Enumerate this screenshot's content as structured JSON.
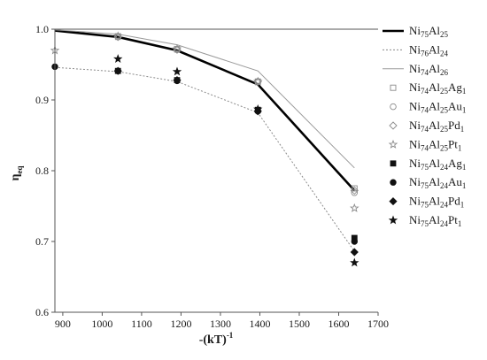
{
  "chart_data": {
    "type": "line",
    "xlabel": "-(kT)",
    "xlabel_sup": "-1",
    "ylabel": "η",
    "ylabel_sub": "eq",
    "xlim": [
      880,
      1700
    ],
    "ylim": [
      0.6,
      1.0
    ],
    "xticks": [
      900,
      1000,
      1100,
      1200,
      1300,
      1400,
      1500,
      1600,
      1700
    ],
    "yticks": [
      0.6,
      0.7,
      0.8,
      0.9,
      1.0
    ],
    "grid": false,
    "legend_position": "right",
    "series": [
      {
        "name": "Ni75Al25",
        "label_parts": [
          [
            "Ni",
            ""
          ],
          [
            "75",
            "sub"
          ],
          [
            "Al",
            ""
          ],
          [
            "25",
            "sub"
          ]
        ],
        "style": "line-thick",
        "color": "#000000",
        "x": [
          880,
          1040,
          1190,
          1395,
          1640
        ],
        "y": [
          0.998,
          0.989,
          0.97,
          0.922,
          0.772
        ]
      },
      {
        "name": "Ni76Al24",
        "label_parts": [
          [
            "Ni",
            ""
          ],
          [
            "76",
            "sub"
          ],
          [
            "Al",
            ""
          ],
          [
            "24",
            "sub"
          ]
        ],
        "style": "line-dotted",
        "color": "#8a8a8a",
        "x": [
          880,
          1040,
          1190,
          1395,
          1640
        ],
        "y": [
          0.946,
          0.94,
          0.926,
          0.882,
          0.686
        ]
      },
      {
        "name": "Ni74Al26",
        "label_parts": [
          [
            "Ni",
            ""
          ],
          [
            "74",
            "sub"
          ],
          [
            "Al",
            ""
          ],
          [
            "26",
            "sub"
          ]
        ],
        "style": "line-thin",
        "color": "#9a9a9a",
        "x": [
          880,
          1040,
          1190,
          1395,
          1640
        ],
        "y": [
          0.999,
          0.993,
          0.978,
          0.941,
          0.804
        ]
      },
      {
        "name": "Ni74Al25Ag1",
        "label_parts": [
          [
            "Ni",
            ""
          ],
          [
            "74",
            "sub"
          ],
          [
            "Al",
            ""
          ],
          [
            "25",
            "sub"
          ],
          [
            "Ag",
            ""
          ],
          [
            "1",
            "sub"
          ]
        ],
        "style": "open-square",
        "color": "#8a8a8a",
        "x": [
          1040,
          1190,
          1395,
          1640
        ],
        "y": [
          0.99,
          0.972,
          0.926,
          0.775
        ]
      },
      {
        "name": "Ni74Al25Au1",
        "label_parts": [
          [
            "Ni",
            ""
          ],
          [
            "74",
            "sub"
          ],
          [
            "Al",
            ""
          ],
          [
            "25",
            "sub"
          ],
          [
            "Au",
            ""
          ],
          [
            "1",
            "sub"
          ]
        ],
        "style": "open-circle",
        "color": "#8a8a8a",
        "x": [
          1040,
          1190,
          1395,
          1640
        ],
        "y": [
          0.989,
          0.971,
          0.926,
          0.769
        ]
      },
      {
        "name": "Ni74Al25Pd1",
        "label_parts": [
          [
            "Ni",
            ""
          ],
          [
            "74",
            "sub"
          ],
          [
            "Al",
            ""
          ],
          [
            "25",
            "sub"
          ],
          [
            "Pd",
            ""
          ],
          [
            "1",
            "sub"
          ]
        ],
        "style": "open-diamond",
        "color": "#8a8a8a",
        "x": [
          1040,
          1190,
          1395,
          1640
        ],
        "y": [
          0.989,
          0.971,
          0.926,
          0.772
        ]
      },
      {
        "name": "Ni74Al25Pt1",
        "label_parts": [
          [
            "Ni",
            ""
          ],
          [
            "74",
            "sub"
          ],
          [
            "Al",
            ""
          ],
          [
            "25",
            "sub"
          ],
          [
            "Pt",
            ""
          ],
          [
            "1",
            "sub"
          ]
        ],
        "style": "open-star",
        "color": "#8a8a8a",
        "x": [
          880,
          1040,
          1190,
          1395,
          1640
        ],
        "y": [
          0.97,
          0.99,
          0.972,
          0.926,
          0.747
        ]
      },
      {
        "name": "Ni75Al24Ag1",
        "label_parts": [
          [
            "Ni",
            ""
          ],
          [
            "75",
            "sub"
          ],
          [
            "Al",
            ""
          ],
          [
            "24",
            "sub"
          ],
          [
            "Ag",
            ""
          ],
          [
            "1",
            "sub"
          ]
        ],
        "style": "filled-square",
        "color": "#111111",
        "x": [
          1040,
          1190,
          1395,
          1640
        ],
        "y": [
          0.941,
          0.928,
          0.886,
          0.705
        ]
      },
      {
        "name": "Ni75Al24Au1",
        "label_parts": [
          [
            "Ni",
            ""
          ],
          [
            "75",
            "sub"
          ],
          [
            "Al",
            ""
          ],
          [
            "24",
            "sub"
          ],
          [
            "Au",
            ""
          ],
          [
            "1",
            "sub"
          ]
        ],
        "style": "filled-circle",
        "color": "#111111",
        "x": [
          880,
          1040,
          1190,
          1395,
          1640
        ],
        "y": [
          0.947,
          0.941,
          0.927,
          0.884,
          0.7
        ]
      },
      {
        "name": "Ni75Al24Pd1",
        "label_parts": [
          [
            "Ni",
            ""
          ],
          [
            "75",
            "sub"
          ],
          [
            "Al",
            ""
          ],
          [
            "24",
            "sub"
          ],
          [
            "Pd",
            ""
          ],
          [
            "1",
            "sub"
          ]
        ],
        "style": "filled-diamond",
        "color": "#111111",
        "x": [
          1040,
          1190,
          1395,
          1640
        ],
        "y": [
          0.941,
          0.928,
          0.884,
          0.685
        ]
      },
      {
        "name": "Ni75Al24Pt1",
        "label_parts": [
          [
            "Ni",
            ""
          ],
          [
            "75",
            "sub"
          ],
          [
            "Al",
            ""
          ],
          [
            "24",
            "sub"
          ],
          [
            "Pt",
            ""
          ],
          [
            "1",
            "sub"
          ]
        ],
        "style": "filled-star",
        "color": "#111111",
        "x": [
          1040,
          1190,
          1395,
          1640
        ],
        "y": [
          0.958,
          0.94,
          0.887,
          0.67
        ]
      }
    ]
  }
}
